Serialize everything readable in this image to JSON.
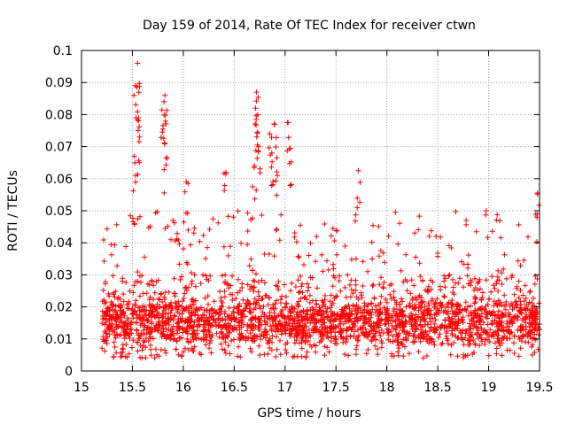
{
  "chart_data": {
    "type": "scatter",
    "title": "Day 159 of 2014, Rate Of TEC Index for receiver ctwn",
    "xlabel": "GPS time / hours",
    "ylabel": "ROTI / TECUs",
    "xlim": [
      15,
      19.5
    ],
    "ylim": [
      0,
      0.1
    ],
    "xticks": [
      "15",
      "15.5",
      "16",
      "16.5",
      "17",
      "17.5",
      "18",
      "18.5",
      "19",
      "19.5"
    ],
    "yticks": [
      "0",
      "0.01",
      "0.02",
      "0.03",
      "0.04",
      "0.05",
      "0.06",
      "0.07",
      "0.08",
      "0.09",
      "0.1"
    ],
    "grid": true,
    "marker": "+",
    "color": "#ff0000",
    "series": [
      {
        "name": "ROTI",
        "x_range": [
          15.2,
          19.5
        ],
        "n_points": 2600,
        "baseline_typical": [
          0.004,
          0.03
        ],
        "upper_envelope_typical": [
          0.03,
          0.05
        ],
        "peaks": [
          {
            "x": 15.55,
            "y": 0.096
          },
          {
            "x": 15.53,
            "y": 0.089
          },
          {
            "x": 15.56,
            "y": 0.079
          },
          {
            "x": 15.57,
            "y": 0.073
          },
          {
            "x": 15.52,
            "y": 0.067
          },
          {
            "x": 15.82,
            "y": 0.086
          },
          {
            "x": 15.81,
            "y": 0.084
          },
          {
            "x": 15.8,
            "y": 0.0755
          },
          {
            "x": 15.83,
            "y": 0.0665
          },
          {
            "x": 16.03,
            "y": 0.059
          },
          {
            "x": 16.42,
            "y": 0.062
          },
          {
            "x": 16.72,
            "y": 0.087
          },
          {
            "x": 16.71,
            "y": 0.082
          },
          {
            "x": 16.7,
            "y": 0.064
          },
          {
            "x": 16.73,
            "y": 0.0745
          },
          {
            "x": 16.74,
            "y": 0.07
          },
          {
            "x": 16.85,
            "y": 0.074
          },
          {
            "x": 16.87,
            "y": 0.068
          },
          {
            "x": 16.9,
            "y": 0.077
          },
          {
            "x": 16.92,
            "y": 0.0665
          },
          {
            "x": 17.03,
            "y": 0.0775
          },
          {
            "x": 17.05,
            "y": 0.0695
          },
          {
            "x": 17.72,
            "y": 0.0625
          },
          {
            "x": 19.48,
            "y": 0.0555
          }
        ]
      }
    ]
  }
}
